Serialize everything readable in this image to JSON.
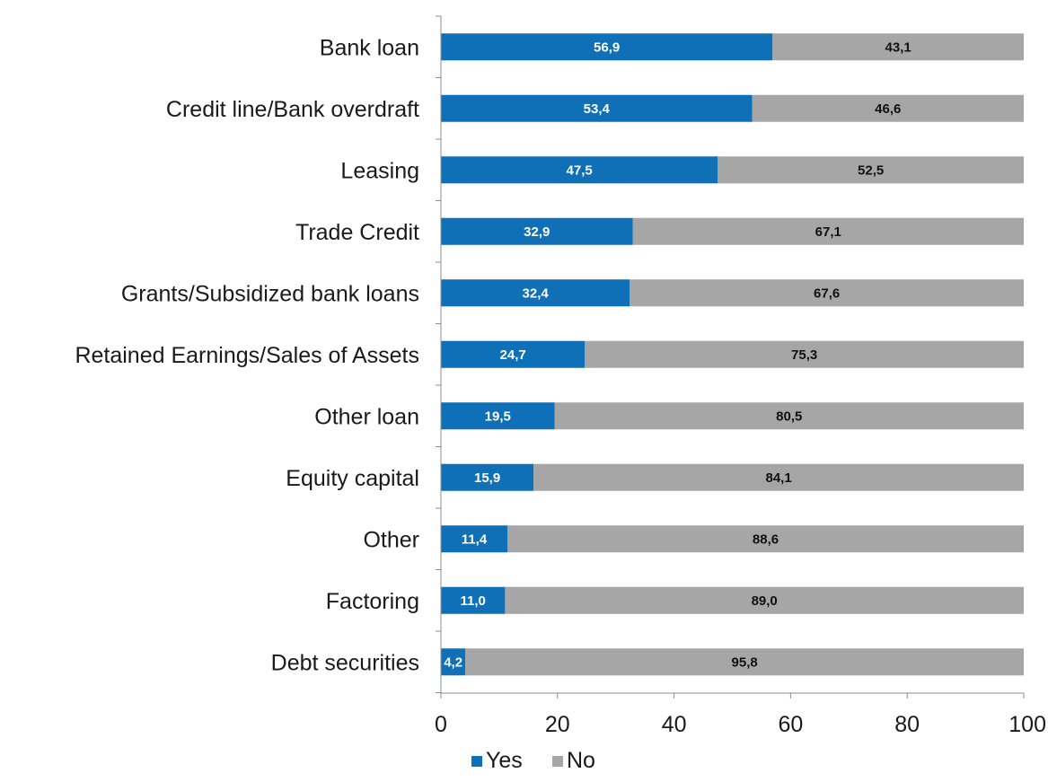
{
  "chart_data": {
    "type": "bar",
    "orientation": "horizontal",
    "stacked": true,
    "categories": [
      "Bank loan",
      "Credit line/Bank overdraft",
      "Leasing",
      "Trade Credit",
      "Grants/Subsidized bank loans",
      "Retained Earnings/Sales of Assets",
      "Other loan",
      "Equity capital",
      "Other",
      "Factoring",
      "Debt securities"
    ],
    "series": [
      {
        "name": "Yes",
        "color": "#0f6fb7",
        "label_color": "#ffffff",
        "values": [
          56.9,
          53.4,
          47.5,
          32.9,
          32.4,
          24.7,
          19.5,
          15.9,
          11.4,
          11.0,
          4.2
        ],
        "labels": [
          "56,9",
          "53,4",
          "47,5",
          "32,9",
          "32,4",
          "24,7",
          "19,5",
          "15,9",
          "11,4",
          "11,0",
          "4,2"
        ]
      },
      {
        "name": "No",
        "color": "#a6a6a6",
        "label_color": "#111111",
        "values": [
          43.1,
          46.6,
          52.5,
          67.1,
          67.6,
          75.3,
          80.5,
          84.1,
          88.6,
          89.0,
          95.8
        ],
        "labels": [
          "43,1",
          "46,6",
          "52,5",
          "67,1",
          "67,6",
          "75,3",
          "80,5",
          "84,1",
          "88,6",
          "89,0",
          "95,8"
        ]
      }
    ],
    "xlim": [
      0,
      100
    ],
    "xticks": [
      0,
      20,
      40,
      60,
      80,
      100
    ],
    "xtick_labels": [
      "0",
      "20",
      "40",
      "60",
      "80",
      "100"
    ],
    "grid": false,
    "legend_position": "bottom-center",
    "title": "",
    "xlabel": "",
    "ylabel": ""
  }
}
